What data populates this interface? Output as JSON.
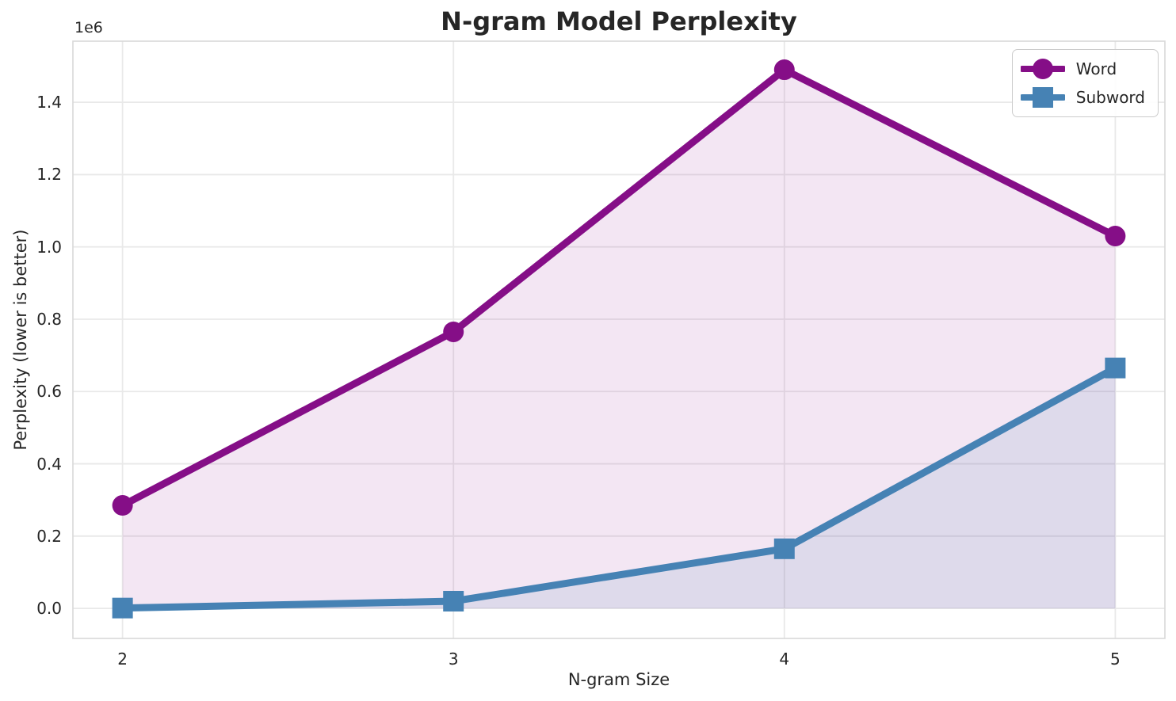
{
  "chart_data": {
    "type": "line",
    "title": "N-gram Model Perplexity",
    "xlabel": "N-gram Size",
    "ylabel": "Perplexity (lower is better)",
    "offset_label": "1e6",
    "x": [
      2,
      3,
      4,
      5
    ],
    "series": [
      {
        "name": "Word",
        "marker": "circle",
        "color": "#850e87",
        "fill_opacity": 0.1,
        "values": [
          285000,
          765000,
          1490000,
          1030000
        ]
      },
      {
        "name": "Subword",
        "marker": "square",
        "color": "#4682b4",
        "fill_opacity": 0.12,
        "values": [
          1000,
          20000,
          165000,
          665000
        ]
      }
    ],
    "area_fill_to_zero": true,
    "xlim": [
      1.85,
      5.15
    ],
    "ylim": [
      -83000,
      1569000
    ],
    "xticks": {
      "values": [
        2,
        3,
        4,
        5
      ],
      "labels": [
        "2",
        "3",
        "4",
        "5"
      ]
    },
    "yticks": {
      "values": [
        0,
        200000,
        400000,
        600000,
        800000,
        1000000,
        1200000,
        1400000
      ],
      "labels": [
        "0.0",
        "0.2",
        "0.4",
        "0.6",
        "0.8",
        "1.0",
        "1.2",
        "1.4"
      ]
    },
    "grid": true,
    "legend_position": "upper right",
    "colors": {
      "grid": "#e9e9e9",
      "spine": "#d9d9d9",
      "text": "#262626",
      "background": "#ffffff"
    }
  }
}
